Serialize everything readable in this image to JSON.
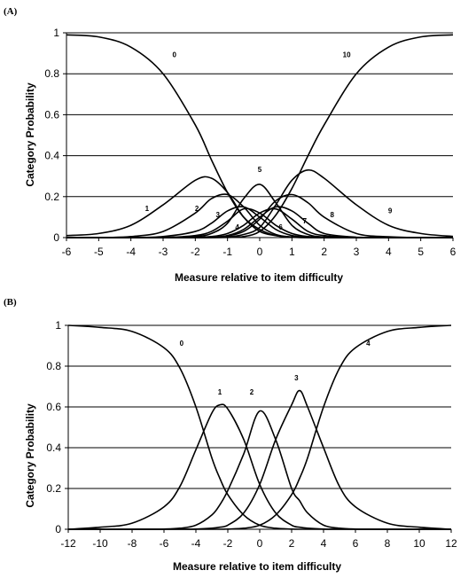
{
  "chart_data": [
    {
      "type": "line",
      "panel_label": "(A)",
      "xlabel": "Measure relative to item difficulty",
      "ylabel": "Category Probability",
      "xlim": [
        -6,
        6
      ],
      "ylim": [
        0,
        1
      ],
      "x_ticks": [
        -6,
        -5,
        -4,
        -3,
        -2,
        -1,
        0,
        1,
        2,
        3,
        4,
        5,
        6
      ],
      "y_ticks": [
        "0",
        "0.2",
        "0.4",
        "0.6",
        "0.8",
        "1"
      ],
      "grid": "horizontal",
      "legend": "none",
      "x": [
        -6,
        -5,
        -4,
        -3,
        -2,
        -1.5,
        -1,
        -0.5,
        0,
        0.5,
        1,
        1.5,
        2,
        3,
        4,
        5,
        6
      ],
      "series": [
        {
          "name": "0",
          "values": [
            0.99,
            0.98,
            0.93,
            0.8,
            0.55,
            0.38,
            0.22,
            0.1,
            0.04,
            0.01,
            0.003,
            0.001,
            0,
            0,
            0,
            0,
            0
          ]
        },
        {
          "name": "1",
          "values": [
            0.01,
            0.02,
            0.06,
            0.16,
            0.28,
            0.29,
            0.22,
            0.1,
            0.03,
            0.01,
            0.002,
            0,
            0,
            0,
            0,
            0,
            0
          ]
        },
        {
          "name": "2",
          "values": [
            0,
            0,
            0.005,
            0.03,
            0.12,
            0.19,
            0.21,
            0.15,
            0.06,
            0.015,
            0.003,
            0,
            0,
            0,
            0,
            0,
            0
          ]
        },
        {
          "name": "3",
          "values": [
            0,
            0,
            0,
            0.005,
            0.03,
            0.07,
            0.13,
            0.15,
            0.1,
            0.04,
            0.01,
            0.002,
            0,
            0,
            0,
            0,
            0
          ]
        },
        {
          "name": "4",
          "values": [
            0,
            0,
            0,
            0,
            0.01,
            0.03,
            0.08,
            0.14,
            0.12,
            0.06,
            0.02,
            0.005,
            0.001,
            0,
            0,
            0,
            0
          ]
        },
        {
          "name": "5",
          "values": [
            0,
            0,
            0,
            0,
            0.005,
            0.02,
            0.07,
            0.19,
            0.26,
            0.17,
            0.06,
            0.015,
            0.003,
            0,
            0,
            0,
            0
          ]
        },
        {
          "name": "6",
          "values": [
            0,
            0,
            0,
            0,
            0.001,
            0.005,
            0.02,
            0.06,
            0.12,
            0.14,
            0.09,
            0.03,
            0.01,
            0,
            0,
            0,
            0
          ]
        },
        {
          "name": "7",
          "values": [
            0,
            0,
            0,
            0,
            0,
            0.002,
            0.01,
            0.04,
            0.1,
            0.15,
            0.13,
            0.07,
            0.02,
            0.002,
            0,
            0,
            0
          ]
        },
        {
          "name": "8",
          "values": [
            0,
            0,
            0,
            0,
            0,
            0.001,
            0.008,
            0.03,
            0.09,
            0.18,
            0.21,
            0.17,
            0.1,
            0.02,
            0.004,
            0,
            0
          ]
        },
        {
          "name": "9",
          "values": [
            0,
            0,
            0,
            0,
            0,
            0,
            0.003,
            0.015,
            0.05,
            0.16,
            0.28,
            0.33,
            0.29,
            0.16,
            0.06,
            0.02,
            0.006
          ]
        },
        {
          "name": "10",
          "values": [
            0,
            0,
            0,
            0,
            0,
            0,
            0.001,
            0.005,
            0.03,
            0.11,
            0.24,
            0.4,
            0.55,
            0.8,
            0.93,
            0.98,
            0.99
          ]
        }
      ],
      "curve_labels": [
        {
          "text": "0",
          "x": -2.65,
          "y": 0.88
        },
        {
          "text": "10",
          "x": 2.7,
          "y": 0.88
        },
        {
          "text": "1",
          "x": -3.5,
          "y": 0.13
        },
        {
          "text": "2",
          "x": -1.95,
          "y": 0.13
        },
        {
          "text": "3",
          "x": -1.3,
          "y": 0.1
        },
        {
          "text": "4",
          "x": -0.7,
          "y": 0.04
        },
        {
          "text": "5",
          "x": 0.0,
          "y": 0.32
        },
        {
          "text": "6",
          "x": 0.65,
          "y": 0.04
        },
        {
          "text": "7",
          "x": 1.4,
          "y": 0.07
        },
        {
          "text": "8",
          "x": 2.25,
          "y": 0.1
        },
        {
          "text": "9",
          "x": 4.05,
          "y": 0.12
        }
      ]
    },
    {
      "type": "line",
      "panel_label": "(B)",
      "xlabel": "Measure relative to item difficulty",
      "ylabel": "Category Probability",
      "xlim": [
        -12,
        12
      ],
      "ylim": [
        0,
        1
      ],
      "x_ticks": [
        -12,
        -10,
        -8,
        -6,
        -4,
        -2,
        0,
        2,
        4,
        6,
        8,
        10,
        12
      ],
      "y_ticks": [
        "0",
        "0.2",
        "0.4",
        "0.6",
        "0.8",
        "1"
      ],
      "grid": "horizontal",
      "legend": "none",
      "x": [
        -12,
        -10,
        -8,
        -6,
        -5,
        -4,
        -3,
        -2.5,
        -2,
        -1,
        0,
        1,
        2,
        2.5,
        3,
        4,
        5,
        6,
        8,
        10,
        12
      ],
      "series": [
        {
          "name": "0",
          "values": [
            1.0,
            0.99,
            0.97,
            0.89,
            0.79,
            0.6,
            0.35,
            0.25,
            0.17,
            0.07,
            0.02,
            0.005,
            0.001,
            0,
            0,
            0,
            0,
            0,
            0,
            0,
            0
          ]
        },
        {
          "name": "1",
          "values": [
            0,
            0.01,
            0.03,
            0.11,
            0.21,
            0.39,
            0.57,
            0.61,
            0.59,
            0.44,
            0.22,
            0.08,
            0.02,
            0.01,
            0.005,
            0.001,
            0,
            0,
            0,
            0,
            0
          ]
        },
        {
          "name": "2",
          "values": [
            0,
            0,
            0,
            0.001,
            0.005,
            0.02,
            0.07,
            0.12,
            0.19,
            0.37,
            0.58,
            0.44,
            0.2,
            0.14,
            0.08,
            0.02,
            0.005,
            0.001,
            0,
            0,
            0
          ]
        },
        {
          "name": "3",
          "values": [
            0,
            0,
            0,
            0,
            0,
            0.001,
            0.005,
            0.01,
            0.02,
            0.08,
            0.22,
            0.44,
            0.61,
            0.68,
            0.6,
            0.4,
            0.21,
            0.11,
            0.03,
            0.01,
            0
          ]
        },
        {
          "name": "4",
          "values": [
            0,
            0,
            0,
            0,
            0,
            0,
            0,
            0,
            0.001,
            0.005,
            0.02,
            0.07,
            0.17,
            0.25,
            0.35,
            0.6,
            0.79,
            0.89,
            0.97,
            0.99,
            1.0
          ]
        }
      ],
      "curve_labels": [
        {
          "text": "0",
          "x": -4.9,
          "y": 0.9
        },
        {
          "text": "1",
          "x": -2.5,
          "y": 0.66
        },
        {
          "text": "2",
          "x": -0.5,
          "y": 0.66
        },
        {
          "text": "3",
          "x": 2.3,
          "y": 0.73
        },
        {
          "text": "4",
          "x": 6.8,
          "y": 0.9
        }
      ]
    }
  ]
}
